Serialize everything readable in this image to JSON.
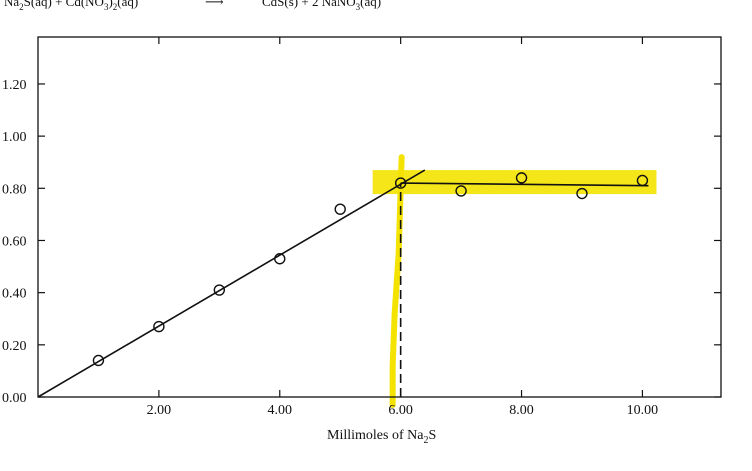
{
  "chart_data": {
    "type": "scatter",
    "title": "",
    "equation": {
      "left": [
        "Na",
        "2",
        "S(aq) + Cd(NO",
        "3",
        ")",
        "2",
        "(aq)"
      ],
      "arrow": "⟶",
      "right": [
        "CdS(s) + 2 NaNO",
        "3",
        "(aq)"
      ]
    },
    "xlabel_main": "Millimoles of  Na",
    "xlabel_sub": "2",
    "xlabel_end": "S",
    "ylabel": "",
    "xlim": [
      0,
      11.3
    ],
    "ylim": [
      0,
      1.38
    ],
    "x_ticks": [
      2.0,
      4.0,
      6.0,
      8.0,
      10.0
    ],
    "x_tick_labels": [
      "2.00",
      "4.00",
      "6.00",
      "8.00",
      "10.00"
    ],
    "y_ticks": [
      0.0,
      0.2,
      0.4,
      0.6,
      0.8,
      1.0,
      1.2
    ],
    "y_tick_labels": [
      "0.00",
      "0.20",
      "0.40",
      "0.60",
      "0.80",
      "1.00",
      "1.20"
    ],
    "right_ticks": [
      0.0,
      0.2,
      0.4,
      0.6,
      0.8,
      1.0,
      1.2
    ],
    "series": [
      {
        "name": "measurements",
        "marker": "open-circle",
        "x": [
          1.0,
          2.0,
          3.0,
          4.0,
          5.0,
          6.0,
          7.0,
          8.0,
          9.0,
          10.0
        ],
        "y": [
          0.14,
          0.27,
          0.41,
          0.53,
          0.72,
          0.82,
          0.79,
          0.84,
          0.78,
          0.83
        ]
      }
    ],
    "fit_lines": [
      {
        "name": "rising-fit",
        "x": [
          0.0,
          6.4
        ],
        "y": [
          0.0,
          0.87
        ]
      },
      {
        "name": "plateau-fit",
        "x": [
          6.0,
          10.1
        ],
        "y": [
          0.82,
          0.81
        ]
      }
    ],
    "annotations": [
      {
        "name": "equivalence-dashed-line",
        "x": 6.0,
        "y_from": 0.0,
        "y_to": 0.82
      }
    ],
    "highlight_color": "#f4e300",
    "line_color": "#111111"
  }
}
